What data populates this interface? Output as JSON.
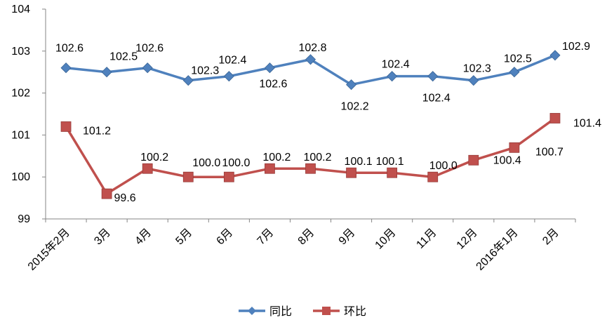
{
  "chart_data": {
    "type": "line",
    "categories": [
      "2015年2月",
      "3月",
      "4月",
      "5月",
      "6月",
      "7月",
      "8月",
      "9月",
      "10月",
      "11月",
      "12月",
      "2016年1月",
      "2月"
    ],
    "ylim": [
      99,
      104
    ],
    "yticks": [
      "99",
      "100",
      "101",
      "102",
      "103",
      "104"
    ],
    "grid": false,
    "legend_position": "bottom",
    "series": [
      {
        "name": "同比",
        "color": "#4F81BD",
        "marker": "diamond",
        "values": [
          102.6,
          102.5,
          102.6,
          102.3,
          102.4,
          102.6,
          102.8,
          102.2,
          102.4,
          102.4,
          102.3,
          102.5,
          102.9
        ],
        "labels": [
          "102.6",
          "102.5",
          "102.6",
          "102.3",
          "102.4",
          "102.6",
          "102.8",
          "102.2",
          "102.4",
          "102.4",
          "102.3",
          "102.5",
          "102.9"
        ]
      },
      {
        "name": "环比",
        "color": "#C0504D",
        "marker": "square",
        "values": [
          101.2,
          99.6,
          100.2,
          100.0,
          100.0,
          100.2,
          100.2,
          100.1,
          100.1,
          100.0,
          100.4,
          100.7,
          101.4
        ],
        "labels": [
          "101.2",
          "99.6",
          "100.2",
          "100.0",
          "100.0",
          "100.2",
          "100.2",
          "100.1",
          "100.1",
          "100.0",
          "100.4",
          "100.7",
          "101.4"
        ]
      }
    ]
  }
}
